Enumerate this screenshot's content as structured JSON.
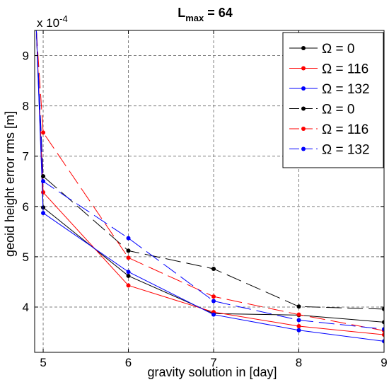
{
  "chart_data": {
    "type": "line",
    "title_main": "L",
    "title_sub": "max",
    "title_rest": " = 64",
    "xlabel": "gravity solution in [day]",
    "ylabel": "geoid height error rms [m]",
    "exponent_prefix": "x 10",
    "exponent_power": "-4",
    "xlim": [
      4.9,
      9
    ],
    "ylim": [
      3.1,
      9.5
    ],
    "xticks": [
      5,
      6,
      7,
      8,
      9
    ],
    "xtick_labels": [
      "5",
      "6",
      "7",
      "8",
      "9"
    ],
    "yticks": [
      4,
      5,
      6,
      7,
      8,
      9
    ],
    "ytick_labels": [
      "4",
      "5",
      "6",
      "7",
      "8",
      "9"
    ],
    "grid": true,
    "legend_placement": "top-right",
    "legend_symbol": "Ω",
    "series": [
      {
        "name": "Ω = 0",
        "color": "#000000",
        "style": "solid",
        "x": [
          4.92,
          5,
          6,
          7,
          8,
          9
        ],
        "y": [
          9.5,
          5.98,
          4.62,
          3.87,
          3.84,
          3.7
        ]
      },
      {
        "name": "Ω = 116",
        "color": "#ff0000",
        "style": "solid",
        "x": [
          4.92,
          5,
          6,
          7,
          8,
          9
        ],
        "y": [
          9.5,
          6.28,
          4.43,
          3.9,
          3.62,
          3.45
        ]
      },
      {
        "name": "Ω = 132",
        "color": "#0000ff",
        "style": "solid",
        "x": [
          4.92,
          5,
          6,
          7,
          8,
          9
        ],
        "y": [
          9.5,
          5.87,
          4.7,
          3.85,
          3.54,
          3.32
        ]
      },
      {
        "name": "Ω = 0",
        "color": "#000000",
        "style": "dashed",
        "x": [
          4.92,
          5,
          6,
          7,
          8,
          9
        ],
        "y": [
          9.5,
          6.6,
          5.12,
          4.76,
          4.01,
          3.96
        ]
      },
      {
        "name": "Ω = 116",
        "color": "#ff0000",
        "style": "dashed",
        "x": [
          4.92,
          5,
          6,
          7,
          8,
          9
        ],
        "y": [
          9.5,
          7.47,
          4.98,
          4.21,
          3.85,
          3.53
        ]
      },
      {
        "name": "Ω = 132",
        "color": "#0000ff",
        "style": "dashed",
        "x": [
          4.92,
          5,
          6,
          7,
          8,
          9
        ],
        "y": [
          9.5,
          6.5,
          5.37,
          4.12,
          3.74,
          3.56
        ]
      }
    ]
  }
}
